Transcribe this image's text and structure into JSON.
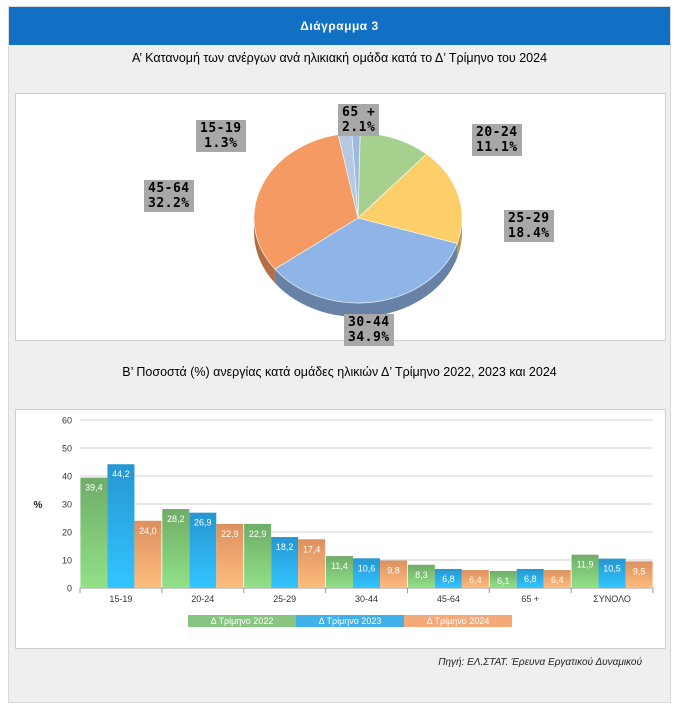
{
  "header": {
    "title": "Διάγραμμα  3"
  },
  "section_a": {
    "title": "Α’ Κατανομή των ανέργων ανά ηλικιακή ομάδα κατά το Δ’ Τρίμηνο του 2024"
  },
  "section_b": {
    "title": "Β’ Ποσοστά (%) ανεργίας κατά ομάδες ηλικιών Δ’ Τρίμηνο 2022,  2023  και 2024"
  },
  "source": "Πηγή: ΕΛ.ΣΤΑΤ. Έρευνα Εργατικού Δυναμικού",
  "colors": {
    "green": "#7bbf73",
    "blue": "#2aa7e8",
    "orange": "#f4a06a",
    "header": "#1170c4"
  },
  "chart_data": [
    {
      "type": "pie",
      "title": "Α’ Κατανομή των ανέργων ανά ηλικιακή ομάδα κατά το Δ’ Τρίμηνο του 2024",
      "slices": [
        {
          "label": "15-19",
          "value": 1.3,
          "display": "1.3%",
          "color": "#9fb9e0"
        },
        {
          "label": "20-24",
          "value": 11.1,
          "display": "11.1%",
          "color": "#a6d08e"
        },
        {
          "label": "25-29",
          "value": 18.4,
          "display": "18.4%",
          "color": "#fdcf69"
        },
        {
          "label": "30-44",
          "value": 34.9,
          "display": "34.9%",
          "color": "#8fb4e6"
        },
        {
          "label": "45-64",
          "value": 32.2,
          "display": "32.2%",
          "color": "#f59a63"
        },
        {
          "label": "65 +",
          "value": 2.1,
          "display": "2.1%",
          "color": "#b6c8e2"
        }
      ]
    },
    {
      "type": "bar",
      "title": "Β’ Ποσοστά (%) ανεργίας κατά ομάδες ηλικιών Δ’ Τρίμηνο 2022,  2023  και 2024",
      "ylabel": "%",
      "ylim": [
        0,
        60
      ],
      "yticks": [
        0,
        10,
        20,
        30,
        40,
        50,
        60
      ],
      "categories": [
        "15-19",
        "20-24",
        "25-29",
        "30-44",
        "45-64",
        "65 +",
        "ΣΥΝΟΛΟ"
      ],
      "series": [
        {
          "name": "Δ Τρίμηνο 2022",
          "values": [
            39.4,
            28.2,
            22.9,
            11.4,
            8.3,
            6.1,
            11.9
          ],
          "labels": [
            "39,4",
            "28,2",
            "22,9",
            "11,4",
            "8,3",
            "6,1",
            "11,9"
          ],
          "color": "#7bbf73"
        },
        {
          "name": "Δ Τρίμηνο 2023",
          "values": [
            44.2,
            26.9,
            18.2,
            10.6,
            6.8,
            6.8,
            10.5
          ],
          "labels": [
            "44,2",
            "26,9",
            "18,2",
            "10,6",
            "6,8",
            "6,8",
            "10,5"
          ],
          "color": "#2aa7e8"
        },
        {
          "name": "Δ Τρίμηνο 2024",
          "values": [
            24.0,
            22.9,
            17.4,
            9.8,
            6.4,
            6.4,
            9.5
          ],
          "labels": [
            "24,0",
            "22,9",
            "17,4",
            "9,8",
            "6,4",
            "6,4",
            "9,5"
          ],
          "color": "#f4a06a"
        }
      ],
      "legend": "bottom",
      "grid": true
    }
  ]
}
